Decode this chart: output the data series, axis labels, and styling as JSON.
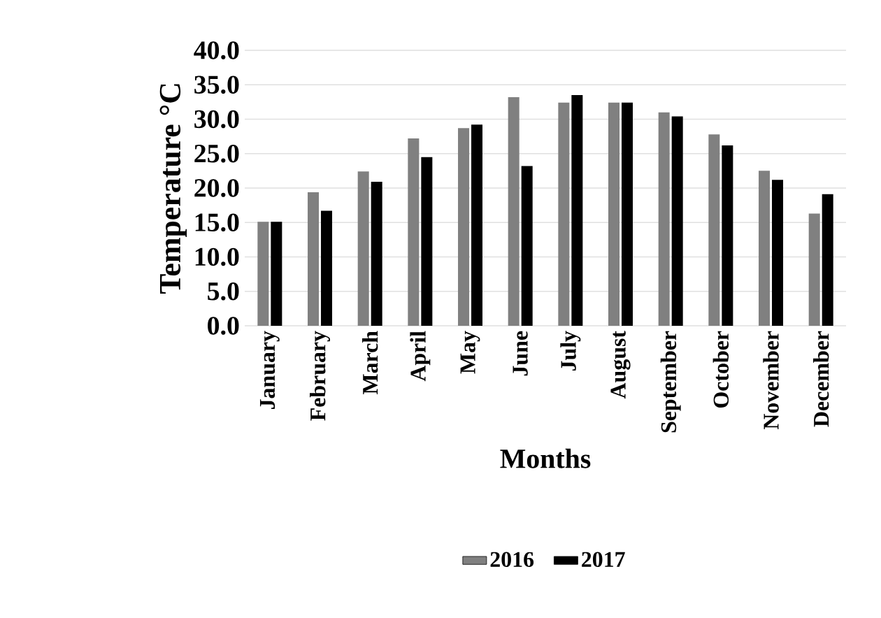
{
  "chart_data": {
    "type": "bar",
    "xlabel": "Months",
    "ylabel": "Temperature °C",
    "categories": [
      "January",
      "February",
      "March",
      "April",
      "May",
      "June",
      "July",
      "August",
      "September",
      "October",
      "November",
      "December"
    ],
    "series": [
      {
        "name": "2016",
        "color": "#808080",
        "values": [
          15.1,
          19.4,
          22.4,
          27.2,
          28.7,
          33.2,
          32.4,
          32.4,
          31.0,
          27.8,
          22.5,
          16.3
        ]
      },
      {
        "name": "2017",
        "color": "#000000",
        "values": [
          15.1,
          16.7,
          20.9,
          24.5,
          29.2,
          23.2,
          33.5,
          32.4,
          30.4,
          26.2,
          21.2,
          19.1
        ]
      }
    ],
    "ylim": [
      0,
      40
    ],
    "yticks": [
      {
        "value": 0,
        "label": "0.0"
      },
      {
        "value": 5,
        "label": "5.0"
      },
      {
        "value": 10,
        "label": "10.0"
      },
      {
        "value": 15,
        "label": "15.0"
      },
      {
        "value": 20,
        "label": "20.0"
      },
      {
        "value": 25,
        "label": "25.0"
      },
      {
        "value": 30,
        "label": "30.0"
      },
      {
        "value": 35,
        "label": "35.0"
      },
      {
        "value": 40,
        "label": "40.0"
      }
    ],
    "grid": "y",
    "legend": "bottom"
  }
}
